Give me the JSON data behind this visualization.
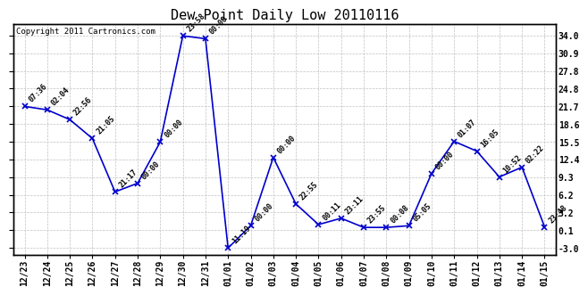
{
  "title": "Dew Point Daily Low 20110116",
  "copyright": "Copyright 2011 Cartronics.com",
  "x_labels": [
    "12/23",
    "12/24",
    "12/25",
    "12/26",
    "12/27",
    "12/28",
    "12/29",
    "12/30",
    "12/31",
    "01/01",
    "01/02",
    "01/03",
    "01/04",
    "01/05",
    "01/06",
    "01/07",
    "01/08",
    "01/09",
    "01/10",
    "01/11",
    "01/12",
    "01/13",
    "01/14",
    "01/15"
  ],
  "y_values": [
    21.7,
    21.1,
    19.4,
    16.1,
    6.8,
    8.3,
    15.5,
    34.0,
    33.5,
    -3.0,
    0.9,
    12.8,
    4.7,
    1.1,
    2.2,
    0.6,
    0.6,
    0.9,
    10.0,
    15.6,
    13.9,
    9.4,
    11.1,
    0.7
  ],
  "time_labels": [
    "07:36",
    "02:04",
    "22:56",
    "21:05",
    "21:17",
    "00:00",
    "00:00",
    "23:58",
    "00:00",
    "11:19",
    "00:00",
    "00:00",
    "22:55",
    "00:11",
    "23:11",
    "23:55",
    "00:08",
    "05:05",
    "00:00",
    "01:07",
    "16:05",
    "10:52",
    "02:22",
    "23:48"
  ],
  "line_color": "#0000cc",
  "marker_color": "#0000cc",
  "background_color": "#ffffff",
  "grid_color": "#c0c0c0",
  "yticks": [
    -3.0,
    0.1,
    3.2,
    6.2,
    9.3,
    12.4,
    15.5,
    18.6,
    21.7,
    24.8,
    27.8,
    30.9,
    34.0
  ],
  "ylim": [
    -4.2,
    36.0
  ],
  "title_fontsize": 11,
  "label_fontsize": 6.0,
  "tick_fontsize": 7.0
}
